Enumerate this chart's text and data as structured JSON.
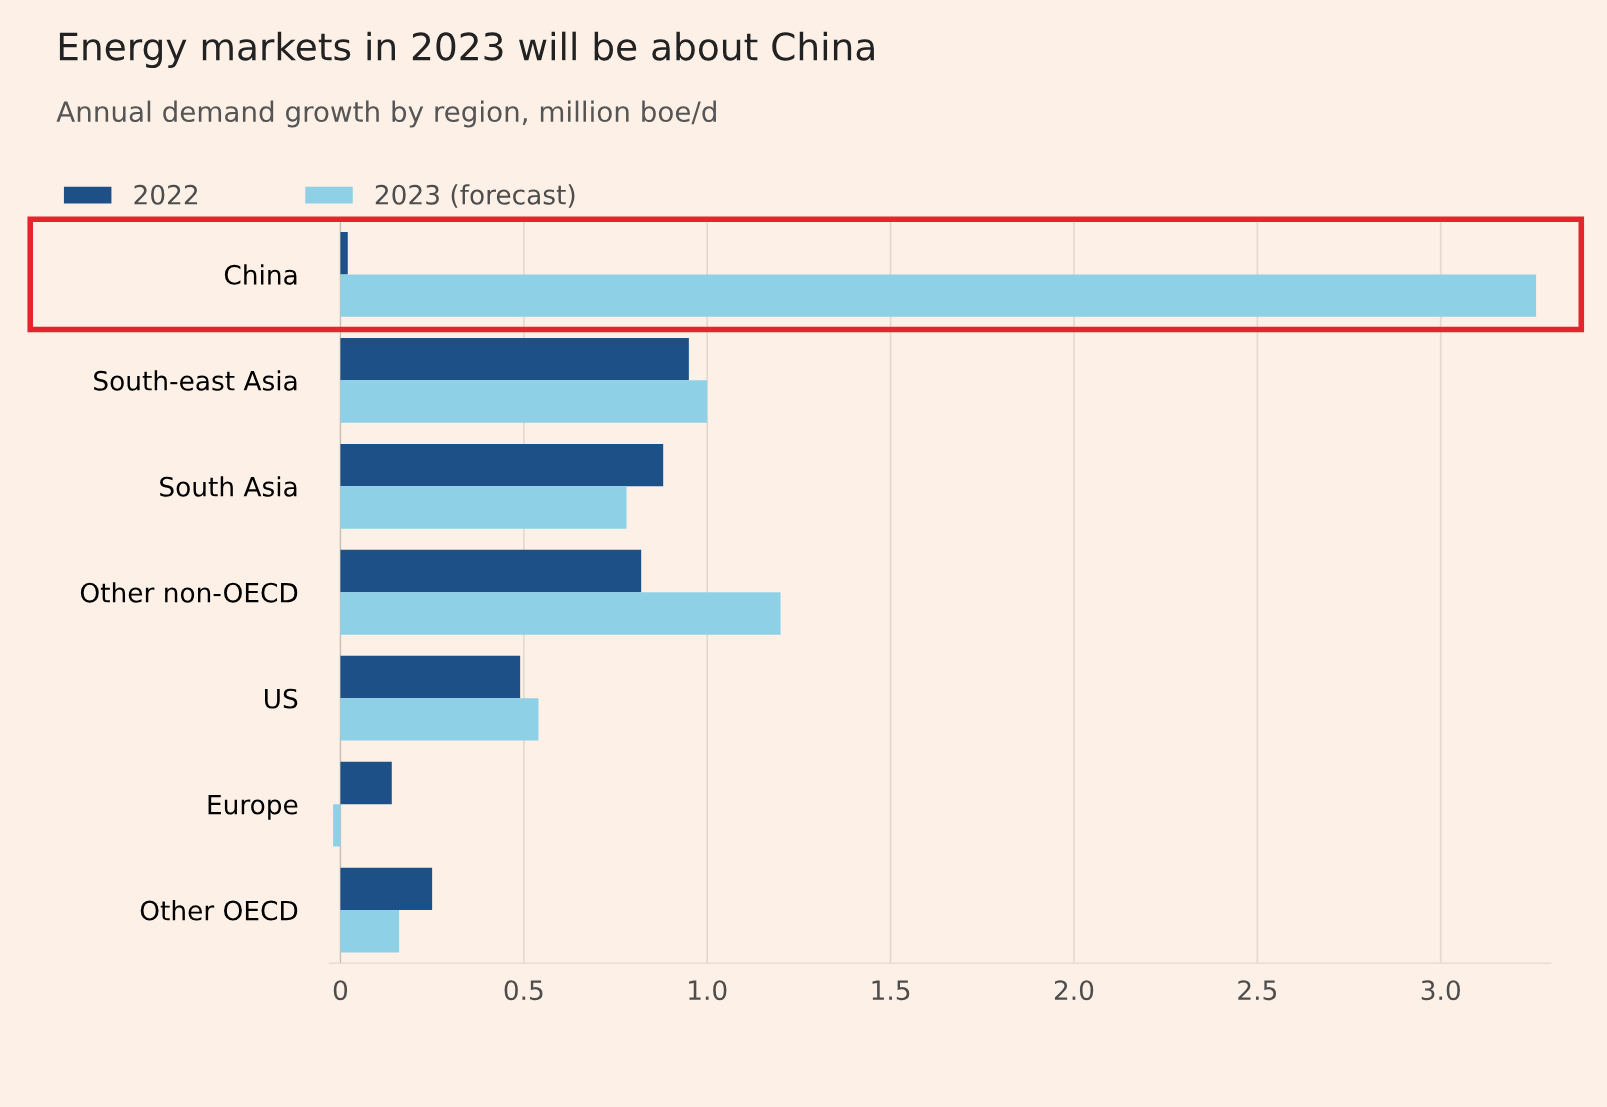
{
  "chart_data": {
    "type": "bar",
    "orientation": "horizontal",
    "title": "Energy markets in 2023 will be about China",
    "subtitle": "Annual demand growth by region, million boe/d",
    "categories": [
      "China",
      "South-east Asia",
      "South Asia",
      "Other non-OECD",
      "US",
      "Europe",
      "Other OECD"
    ],
    "series": [
      {
        "name": "2022",
        "color": "#1d5087",
        "values": [
          0.02,
          0.95,
          0.88,
          0.82,
          0.49,
          0.14,
          0.25
        ]
      },
      {
        "name": "2023 (forecast)",
        "color": "#8ed0e6",
        "values": [
          3.26,
          1.0,
          0.78,
          1.2,
          0.54,
          -0.02,
          0.16
        ]
      }
    ],
    "xlim": [
      -0.03,
      3.3
    ],
    "xticks": [
      0,
      {
        "value": 0.5,
        "label": "0.5"
      },
      {
        "value": 1,
        "label": "1.0"
      },
      {
        "value": 1.5,
        "label": "1.5"
      },
      {
        "value": 2,
        "label": "2.0"
      },
      {
        "value": 2.5,
        "label": "2.5"
      },
      {
        "value": 3,
        "label": "3.0"
      }
    ],
    "grid": "x",
    "legend": "top left"
  }
}
